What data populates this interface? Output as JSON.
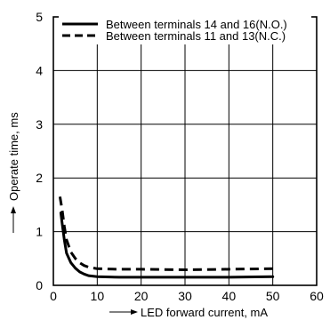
{
  "chart_data": {
    "type": "line",
    "xlabel": "LED forward current, mA",
    "ylabel": "Operate time, ms",
    "xlim": [
      0,
      60
    ],
    "ylim": [
      0,
      5
    ],
    "xticks": [
      "0",
      "10",
      "20",
      "30",
      "40",
      "50",
      "60"
    ],
    "yticks": [
      "0",
      "1",
      "2",
      "3",
      "4",
      "5"
    ],
    "grid": true,
    "legend_position": "top-right",
    "series": [
      {
        "name": "Between terminals 14 and 16(N.O.)",
        "style": "solid",
        "x": [
          1.7,
          2,
          2.5,
          3,
          4,
          5,
          6,
          7,
          8,
          10,
          15,
          20,
          30,
          40,
          50
        ],
        "y": [
          1.35,
          1.15,
          0.85,
          0.6,
          0.42,
          0.32,
          0.25,
          0.21,
          0.18,
          0.16,
          0.15,
          0.15,
          0.15,
          0.15,
          0.16
        ]
      },
      {
        "name": "Between terminals 11 and 13(N.C.)",
        "style": "dashed",
        "x": [
          1.5,
          2,
          2.5,
          3,
          4,
          5,
          6,
          7,
          8,
          10,
          15,
          20,
          30,
          40,
          50
        ],
        "y": [
          1.65,
          1.4,
          1.1,
          0.85,
          0.62,
          0.5,
          0.42,
          0.37,
          0.34,
          0.31,
          0.3,
          0.3,
          0.29,
          0.3,
          0.31
        ]
      }
    ]
  }
}
